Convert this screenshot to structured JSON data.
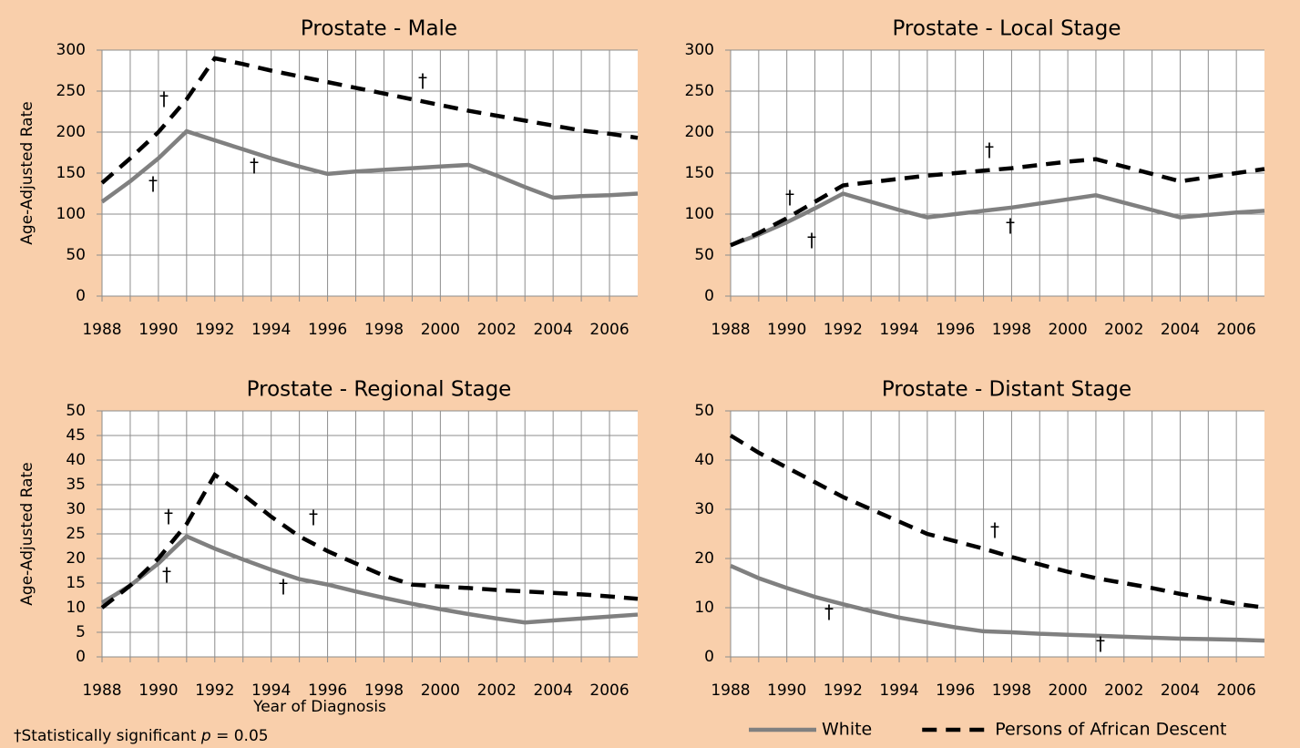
{
  "chart_data": [
    {
      "type": "line",
      "title": "Prostate - Male",
      "y_label": "Age-Adjusted Rate",
      "x": [
        1988,
        1989,
        1990,
        1991,
        1992,
        1993,
        1994,
        1995,
        1996,
        1997,
        1998,
        1999,
        2000,
        2001,
        2002,
        2003,
        2004,
        2005,
        2006,
        2007
      ],
      "xlim": [
        1988,
        2007
      ],
      "xticks": [
        1988,
        1990,
        1992,
        1994,
        1996,
        1998,
        2000,
        2002,
        2004,
        2006
      ],
      "x_minor_ticks": [
        1989,
        1991,
        1993,
        1995,
        1997,
        1999,
        2001,
        2003,
        2005
      ],
      "ylim": [
        0,
        300
      ],
      "yticks": [
        0,
        50,
        100,
        150,
        200,
        250,
        300
      ],
      "grid": true,
      "series": [
        {
          "name": "White",
          "color": "#808080",
          "dash": "solid",
          "values": [
            115,
            140,
            168,
            201,
            190,
            179,
            168,
            158,
            149,
            152,
            154,
            156,
            158,
            160,
            147,
            133,
            120,
            122,
            123,
            125
          ]
        },
        {
          "name": "Persons of African Descent",
          "color": "#000000",
          "dash": "dashed",
          "values": [
            138,
            168,
            200,
            240,
            290,
            283,
            275,
            268,
            261,
            254,
            247,
            240,
            233,
            226,
            220,
            214,
            208,
            202,
            198,
            193
          ]
        }
      ],
      "annotations": [
        "†",
        "†",
        "†",
        "†"
      ]
    },
    {
      "type": "line",
      "title": "Prostate - Local Stage",
      "x": [
        1988,
        1989,
        1990,
        1991,
        1992,
        1993,
        1994,
        1995,
        1996,
        1997,
        1998,
        1999,
        2000,
        2001,
        2002,
        2003,
        2004,
        2005,
        2006,
        2007
      ],
      "xlim": [
        1988,
        2007
      ],
      "xticks": [
        1988,
        1990,
        1992,
        1994,
        1996,
        1998,
        2000,
        2002,
        2004,
        2006
      ],
      "x_minor_ticks": [
        1989,
        1991,
        1993,
        1995,
        1997,
        1999,
        2001,
        2003,
        2005
      ],
      "ylim": [
        0,
        300
      ],
      "yticks": [
        0,
        50,
        100,
        150,
        200,
        250,
        300
      ],
      "grid": true,
      "series": [
        {
          "name": "White",
          "color": "#808080",
          "dash": "solid",
          "values": [
            62,
            75,
            90,
            107,
            125,
            115,
            105,
            96,
            100,
            104,
            108,
            113,
            118,
            123,
            114,
            105,
            96,
            99,
            102,
            104
          ]
        },
        {
          "name": "Persons of African Descent",
          "color": "#000000",
          "dash": "dashed",
          "values": [
            62,
            77,
            95,
            115,
            135,
            139,
            143,
            147,
            150,
            153,
            156,
            160,
            164,
            167,
            158,
            149,
            140,
            145,
            150,
            155
          ]
        }
      ],
      "annotations": [
        "†",
        "†",
        "†",
        "†"
      ]
    },
    {
      "type": "line",
      "title": "Prostate - Regional Stage",
      "y_label": "Age-Adjusted Rate",
      "x_label": "Year of Diagnosis",
      "x": [
        1988,
        1989,
        1990,
        1991,
        1992,
        1993,
        1994,
        1995,
        1996,
        1997,
        1998,
        1999,
        2000,
        2001,
        2002,
        2003,
        2004,
        2005,
        2006,
        2007
      ],
      "xlim": [
        1988,
        2007
      ],
      "xticks": [
        1988,
        1990,
        1992,
        1994,
        1996,
        1998,
        2000,
        2002,
        2004,
        2006
      ],
      "x_minor_ticks": [
        1989,
        1991,
        1993,
        1995,
        1997,
        1999,
        2001,
        2003,
        2005
      ],
      "ylim": [
        0,
        50
      ],
      "yticks": [
        0,
        5,
        10,
        15,
        20,
        25,
        30,
        35,
        40,
        45,
        50
      ],
      "grid": true,
      "series": [
        {
          "name": "White",
          "color": "#808080",
          "dash": "solid",
          "values": [
            11,
            14.5,
            19,
            24.5,
            22,
            19.8,
            17.7,
            15.8,
            14.7,
            13.3,
            12,
            10.8,
            9.7,
            8.7,
            7.8,
            7,
            7.4,
            7.8,
            8.2,
            8.6
          ]
        },
        {
          "name": "Persons of African Descent",
          "color": "#000000",
          "dash": "dashed",
          "values": [
            10,
            14.5,
            20,
            27,
            37,
            33,
            28.5,
            24.5,
            21.5,
            19,
            16.5,
            14.7,
            14.3,
            14,
            13.6,
            13.3,
            13,
            12.7,
            12.3,
            11.8
          ]
        }
      ],
      "annotations": [
        "†",
        "†",
        "†",
        "†"
      ]
    },
    {
      "type": "line",
      "title": "Prostate - Distant Stage",
      "x": [
        1988,
        1989,
        1990,
        1991,
        1992,
        1993,
        1994,
        1995,
        1996,
        1997,
        1998,
        1999,
        2000,
        2001,
        2002,
        2003,
        2004,
        2005,
        2006,
        2007
      ],
      "xlim": [
        1988,
        2007
      ],
      "xticks": [
        1988,
        1990,
        1992,
        1994,
        1996,
        1998,
        2000,
        2002,
        2004,
        2006
      ],
      "x_minor_ticks": [
        1989,
        1991,
        1993,
        1995,
        1997,
        1999,
        2001,
        2003,
        2005
      ],
      "ylim": [
        0,
        50
      ],
      "yticks": [
        0,
        10,
        20,
        30,
        40,
        50
      ],
      "grid": true,
      "legend": "bottom-right",
      "series": [
        {
          "name": "White",
          "color": "#808080",
          "dash": "solid",
          "values": [
            18.5,
            16,
            14,
            12.2,
            10.7,
            9.3,
            8,
            7,
            6,
            5.2,
            5,
            4.7,
            4.5,
            4.3,
            4.1,
            3.9,
            3.7,
            3.6,
            3.5,
            3.3
          ]
        },
        {
          "name": "Persons of African Descent",
          "color": "#000000",
          "dash": "dashed",
          "values": [
            45,
            41.5,
            38.5,
            35.5,
            32.5,
            30,
            27.5,
            25,
            23.5,
            22,
            20.3,
            18.8,
            17.3,
            16,
            15,
            14,
            12.8,
            11.8,
            10.8,
            10
          ]
        }
      ],
      "annotations": [
        "†",
        "†",
        "†"
      ]
    }
  ],
  "footnote": [
    "†Statistically significant ",
    "p",
    " = 0.05"
  ]
}
